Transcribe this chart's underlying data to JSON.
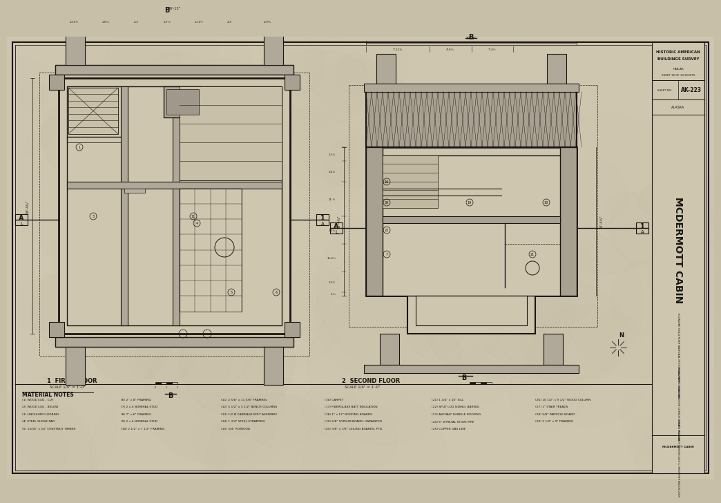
{
  "bg_color": "#c8bfa8",
  "paper_color": "#cdc5ae",
  "line_color": "#1a1510",
  "medium_line": "#2a2318",
  "title": "MCDERMOTT CABIN",
  "subtitle_park": "KLONDIKE GOLD RUSH NATIONAL HISTORICAL PARK   SKAGWAY",
  "subtitle_state": "SKAGWAY-HOONAH-ANGOON CENSUS AREA     ALASKA",
  "habs": "HISTORIC AMERICAN\nBUILDINGS SURVEY",
  "drawing_no": "AK-223",
  "sheet_info": "SHEET 10 OF 10 SHEETS",
  "floor1_label": "1  FIRST FLOOR",
  "floor1_scale": "SCALE 1/4\" = 1'-0\"",
  "floor2_label": "2  SECOND FLOOR",
  "floor2_scale": "SCALE 1/4\" = 1'-0\"",
  "material_notes_title": "MATERIAL NOTES",
  "mat_col1": [
    "(1) WOOD LOG - CUT",
    "(2) WOOD LOG - BELOW",
    "(3) LINOLEUM FLOORING",
    "(4) STEEL SHOVE PAD",
    "(5) 13/16\" x 14\" CHESTNUT TIMBER"
  ],
  "mat_col2": [
    "(6) 2\" x 8\" FRAMING",
    "(7) 2 x 4 NOMINAL STUD",
    "(8) 7\" x 6\" FRAMING",
    "(9) 2 x 6 NOMINAL STUD",
    "(10) 2 1/2\" x 7 1/2\" FRAMING"
  ],
  "mat_col3": [
    "(11) 2 5/8\" x 11 5/8\" FRAMING",
    "(12) 5 1/2\" x 3 1/2\" BENCH COLUMNS",
    "(13) 1/2 Ø CARRIAGE BOLT ASSEMBLY",
    "(14) 1 3/4\" STEEL STRAPPING",
    "(15) 3/4\" PLYWOOD"
  ],
  "mat_col4": [
    "(16) CARPET",
    "(17) FIBERGLASS BATT INSULATION",
    "(18) 1\" x 12\" ROOFING BOARDS",
    "(19) 5/8\" GYPSUM BOARD, UNPAINTED",
    "(20) 3/8\" x 7/8\" CEILING BOARDS, PTD."
  ],
  "mat_col5": [
    "(21) 1 3/4\" x 10\" SILL",
    "(22) SPLIT LOG SIDING, BARKED",
    "(23) ASPHALT SHINGLE ROOFING",
    "(24) 6\" Ø METAL STOVE PIPE",
    "(25) COPPER GAS LINE"
  ],
  "mat_col6": [
    "(26) 10 1/2\" x 9 1/2\" WOOD COLUMN",
    "(27) 1\" STAIR TREADS",
    "(28) 5/8\" PARTICLE BOARD",
    "(29) 2 1/2\" x 9\" FRAMING"
  ],
  "drawn_by": "DRAWN BY ELIZABETH JOHNSON (2009) & CHRISTOPHER NIELSON (2009)"
}
